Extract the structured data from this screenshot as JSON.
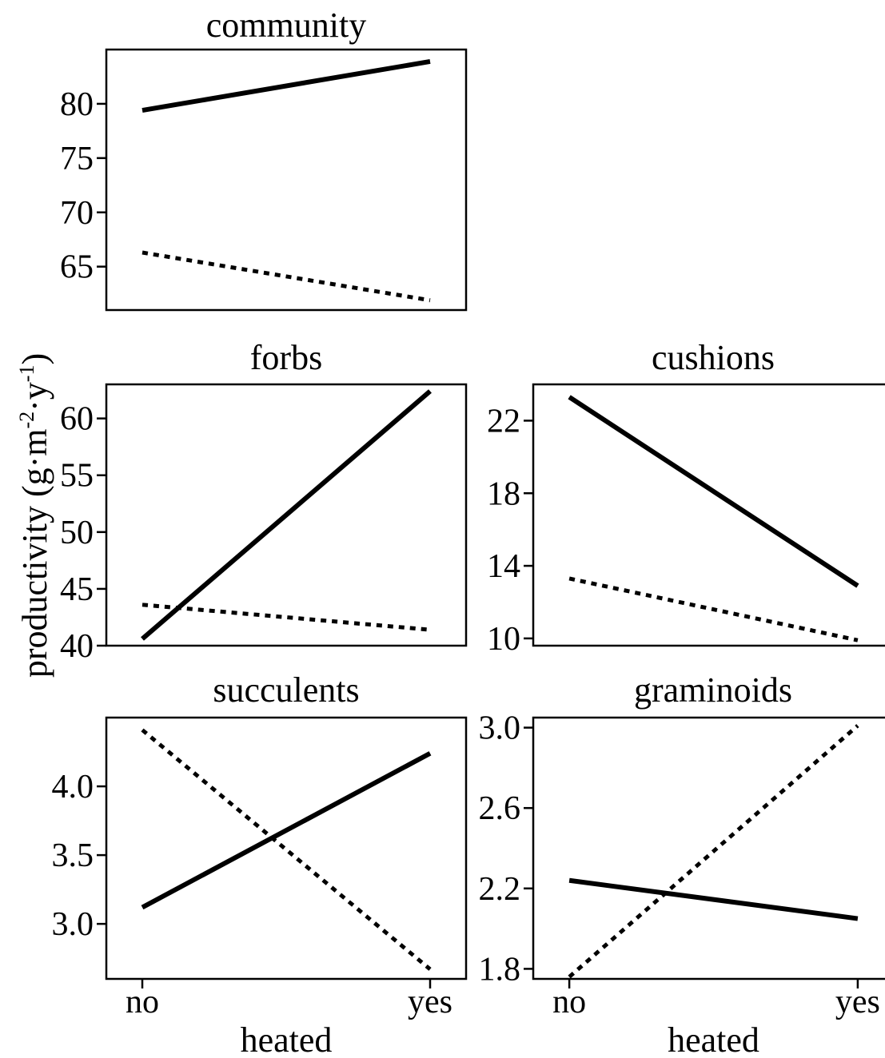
{
  "chart_data": {
    "type": "line",
    "y_axis_label": "productivity (g·m",
    "y_axis_label_sup1": "-2",
    "y_axis_label_mid": "·y",
    "y_axis_label_sup2": "-1",
    "y_axis_label_end": ")",
    "x_axis_label": "heated",
    "x_tick_labels": [
      "no",
      "yes"
    ],
    "panels": [
      {
        "id": "community",
        "title": "community",
        "ylim": [
          61,
          85
        ],
        "yticks": [
          65,
          70,
          75,
          80
        ],
        "x_axis_shown": false,
        "series": [
          {
            "style": "solid",
            "values": [
              79.4,
              83.9
            ]
          },
          {
            "style": "dotted",
            "values": [
              66.3,
              61.9
            ]
          }
        ]
      },
      {
        "id": "forbs",
        "title": "forbs",
        "ylim": [
          40,
          63
        ],
        "yticks": [
          40,
          45,
          50,
          55,
          60
        ],
        "x_axis_shown": false,
        "series": [
          {
            "style": "solid",
            "values": [
              40.6,
              62.4
            ]
          },
          {
            "style": "dotted",
            "values": [
              43.6,
              41.4
            ]
          }
        ]
      },
      {
        "id": "cushions",
        "title": "cushions",
        "ylim": [
          9.6,
          24.0
        ],
        "yticks": [
          10,
          14,
          18,
          22
        ],
        "x_axis_shown": false,
        "series": [
          {
            "style": "solid",
            "values": [
              23.3,
              12.9
            ]
          },
          {
            "style": "dotted",
            "values": [
              13.3,
              9.9
            ]
          }
        ]
      },
      {
        "id": "succulents",
        "title": "succulents",
        "ylim": [
          2.6,
          4.5
        ],
        "yticks": [
          3.0,
          3.5,
          4.0
        ],
        "x_axis_shown": true,
        "series": [
          {
            "style": "solid",
            "values": [
              3.12,
              4.24
            ]
          },
          {
            "style": "dotted",
            "values": [
              4.41,
              2.67
            ]
          }
        ]
      },
      {
        "id": "graminoids",
        "title": "graminoids",
        "ylim": [
          1.75,
          3.05
        ],
        "yticks": [
          1.8,
          2.2,
          2.6,
          3.0
        ],
        "x_axis_shown": true,
        "series": [
          {
            "style": "solid",
            "values": [
              2.24,
              2.05
            ]
          },
          {
            "style": "dotted",
            "values": [
              1.76,
              3.01
            ]
          }
        ]
      }
    ]
  }
}
